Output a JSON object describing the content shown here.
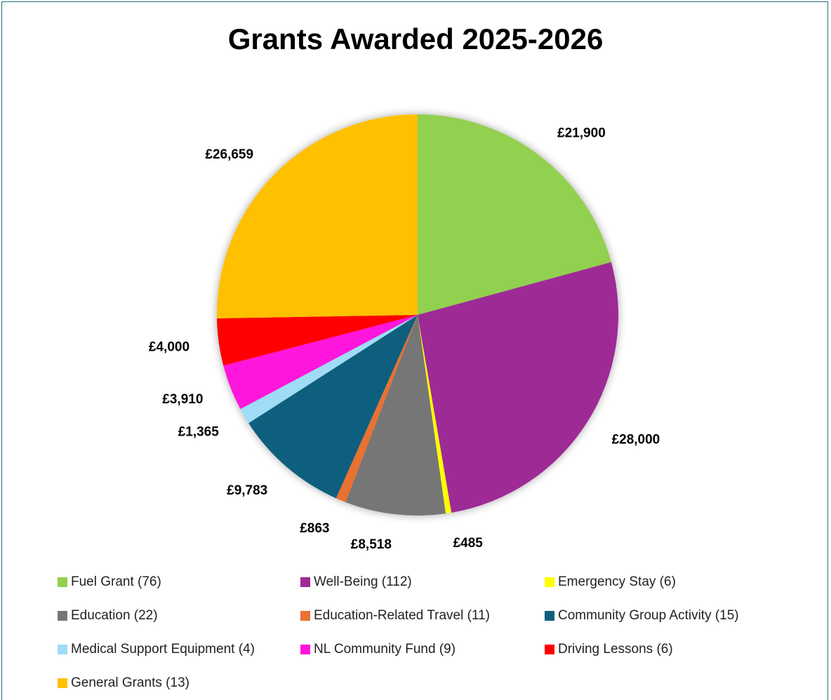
{
  "chart_data": {
    "type": "pie",
    "title": "Grants Awarded 2025-2026",
    "slices": [
      {
        "name": "Fuel Grant (76)",
        "value": 21900,
        "label": "£21,900",
        "color": "#92d050"
      },
      {
        "name": "Well-Being (112)",
        "value": 28000,
        "label": "£28,000",
        "color": "#9e2a96"
      },
      {
        "name": "Emergency Stay (6)",
        "value": 485,
        "label": "£485",
        "color": "#ffff00"
      },
      {
        "name": "Education (22)",
        "value": 8518,
        "label": "£8,518",
        "color": "#767676"
      },
      {
        "name": "Education-Related Travel (11)",
        "value": 863,
        "label": "£863",
        "color": "#e97132"
      },
      {
        "name": "Community Group Activity (15)",
        "value": 9783,
        "label": "£9,783",
        "color": "#0e5f7d"
      },
      {
        "name": "Medical Support Equipment (4)",
        "value": 1365,
        "label": "£1,365",
        "color": "#a0dcf5"
      },
      {
        "name": "NL Community Fund (9)",
        "value": 3910,
        "label": "£3,910",
        "color": "#ff14dc"
      },
      {
        "name": "Driving Lessons (6)",
        "value": 4000,
        "label": "£4,000",
        "color": "#ff0000"
      },
      {
        "name": "General Grants (13)",
        "value": 26659,
        "label": "£26,659",
        "color": "#ffc000"
      }
    ],
    "legend_position": "bottom"
  }
}
